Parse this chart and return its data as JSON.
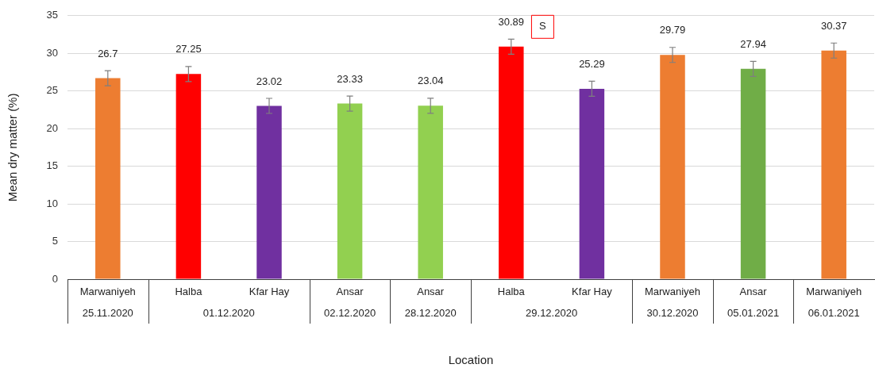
{
  "chart_data": {
    "type": "bar",
    "xlabel": "Location",
    "ylabel": "Mean dry matter (%)",
    "categories": [
      "Marwaniyeh",
      "Halba",
      "Kfar Hay",
      "Ansar",
      "Ansar",
      "Halba",
      "Kfar Hay",
      "Marwaniyeh",
      "Ansar",
      "Marwaniyeh"
    ],
    "values": [
      26.7,
      27.25,
      23.02,
      23.33,
      23.04,
      30.89,
      25.29,
      29.79,
      27.94,
      30.37
    ],
    "colors": [
      "#ed7d31",
      "#ff0000",
      "#7030a0",
      "#92d050",
      "#92d050",
      "#ff0000",
      "#7030a0",
      "#ed7d31",
      "#70ad47",
      "#ed7d31"
    ],
    "errors": [
      1,
      1,
      1,
      1,
      1,
      1,
      1,
      1,
      1,
      1
    ],
    "ylim": [
      0,
      35
    ],
    "yticks": [
      0,
      5,
      10,
      15,
      20,
      25,
      30,
      35
    ],
    "grid": "y",
    "data_labels": true,
    "annotations": [
      "S",
      "25.11.2020",
      "01.12.2020",
      "02.12.2020",
      "28.12.2020",
      "29.12.2020",
      "30.12.2020",
      "05.01.2021",
      "06.01.2021"
    ]
  }
}
